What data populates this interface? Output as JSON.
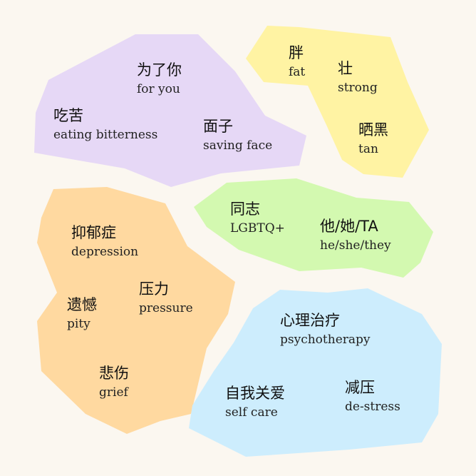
{
  "colors": {
    "background": "#fbf7f0",
    "purple": "#e6d8f6",
    "yellow": "#fff3a3",
    "green": "#d3f9b0",
    "orange": "#ffd9a0",
    "blue": "#cdedfd"
  },
  "groups": [
    {
      "color": "purple",
      "terms": [
        {
          "zh": "为了你",
          "en": "for you"
        },
        {
          "zh": "吃苦",
          "en": "eating bitterness"
        },
        {
          "zh": "面子",
          "en": "saving face"
        }
      ]
    },
    {
      "color": "yellow",
      "terms": [
        {
          "zh": "胖",
          "en": "fat"
        },
        {
          "zh": "壮",
          "en": "strong"
        },
        {
          "zh": "晒黑",
          "en": "tan"
        }
      ]
    },
    {
      "color": "green",
      "terms": [
        {
          "zh": "同志",
          "en": "LGBTQ+"
        },
        {
          "zh": "他/她/TA",
          "en": "he/she/they"
        }
      ]
    },
    {
      "color": "orange",
      "terms": [
        {
          "zh": "抑郁症",
          "en": "depression"
        },
        {
          "zh": "压力",
          "en": "pressure"
        },
        {
          "zh": "遗憾",
          "en": "pity"
        },
        {
          "zh": "悲伤",
          "en": "grief"
        }
      ]
    },
    {
      "color": "blue",
      "terms": [
        {
          "zh": "心理治疗",
          "en": "psychotherapy"
        },
        {
          "zh": "自我关爱",
          "en": "self care"
        },
        {
          "zh": "减压",
          "en": "de-stress"
        }
      ]
    }
  ]
}
